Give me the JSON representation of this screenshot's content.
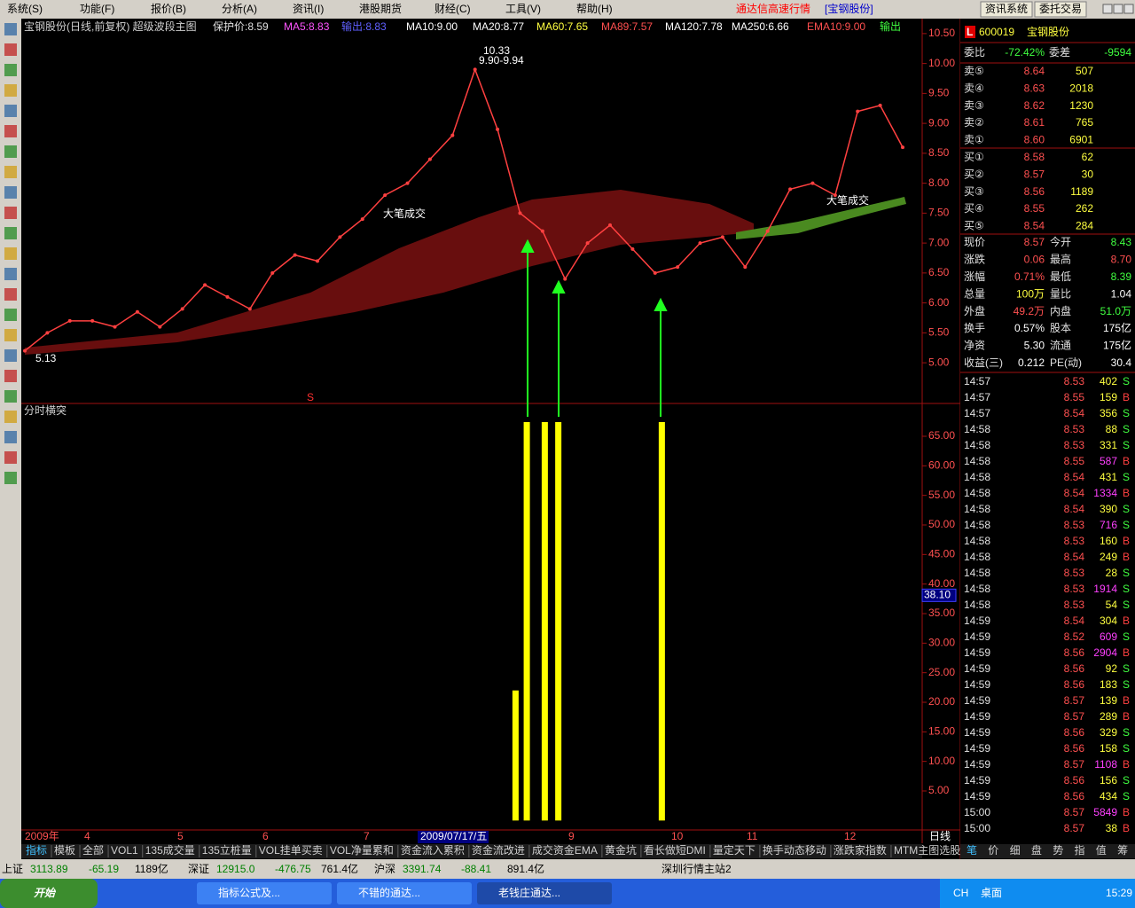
{
  "menu": {
    "items": [
      "系统(S)",
      "功能(F)",
      "报价(B)",
      "分析(A)",
      "资讯(I)",
      "港股期货",
      "财经(C)",
      "工具(V)",
      "帮助(H)"
    ],
    "app_title": "通达信高速行情",
    "stock": "[宝钢股份]",
    "buttons": [
      "资讯系统",
      "委托交易"
    ]
  },
  "price_panel": {
    "title": "宝钢股份(日线,前复权) 超级波段主图",
    "indicators": [
      {
        "text": "保护价:8.59",
        "color": "#e0e0e0"
      },
      {
        "text": "MA5:8.83",
        "color": "#ff55ff"
      },
      {
        "text": "输出:8.83",
        "color": "#6060ff"
      },
      {
        "text": "MA10:9.00",
        "color": "#ffffff"
      },
      {
        "text": "MA20:8.77",
        "color": "#ffffff"
      },
      {
        "text": "MA60:7.65",
        "color": "#ffff40"
      },
      {
        "text": "MA89:7.57",
        "color": "#ff5050"
      },
      {
        "text": "MA120:7.78",
        "color": "#ffffff"
      },
      {
        "text": "MA250:6.66",
        "color": "#ffffff"
      },
      {
        "text": "EMA10:9.00",
        "color": "#ff5050"
      },
      {
        "text": "输出",
        "color": "#40ff40"
      }
    ],
    "chart": {
      "type": "line",
      "color": "#ff4040",
      "xlim": [
        0,
        39
      ],
      "ylim": [
        4.32,
        10.75
      ],
      "yticks": [
        {
          "value": 5,
          "label": "5.00"
        },
        {
          "value": 5.5,
          "label": "5.50"
        },
        {
          "value": 6,
          "label": "6.00"
        },
        {
          "value": 6.5,
          "label": "6.50"
        },
        {
          "value": 7,
          "label": "7.00"
        },
        {
          "value": 7.5,
          "label": "7.50"
        },
        {
          "value": 8,
          "label": "8.00"
        },
        {
          "value": 8.5,
          "label": "8.50"
        },
        {
          "value": 9,
          "label": "9.00"
        },
        {
          "value": 9.5,
          "label": "9.50"
        },
        {
          "value": 10,
          "label": "10.00"
        },
        {
          "value": 10.5,
          "label": "10.50"
        }
      ],
      "values": [
        5.2,
        5.5,
        5.7,
        5.7,
        5.6,
        5.85,
        5.6,
        5.9,
        6.3,
        6.1,
        5.9,
        6.5,
        6.8,
        6.7,
        7.1,
        7.4,
        7.8,
        8.0,
        8.4,
        8.8,
        9.9,
        8.9,
        7.5,
        7.2,
        6.4,
        7.0,
        7.3,
        6.9,
        6.5,
        6.6,
        7.0,
        7.1,
        6.6,
        7.2,
        7.9,
        8.0,
        7.8,
        9.2,
        9.3,
        8.6
      ]
    },
    "annotations": [
      "10.33",
      "9.90-9.94",
      "5.13",
      "大笔成交",
      "大笔成交",
      "S"
    ]
  },
  "indicator_panel": {
    "title": "分时横突",
    "chart": {
      "type": "bar",
      "color": "#ffff00",
      "xlim": [
        0,
        39
      ],
      "ylim": [
        -1.45,
        70.4
      ],
      "yticks": [
        {
          "value": 5,
          "label": "5.00"
        },
        {
          "value": 10,
          "label": "10.00"
        },
        {
          "value": 15,
          "label": "15.00"
        },
        {
          "value": 20,
          "label": "20.00"
        },
        {
          "value": 25,
          "label": "25.00"
        },
        {
          "value": 30,
          "label": "30.00"
        },
        {
          "value": 35,
          "label": "35.00"
        },
        {
          "value": 40,
          "label": "40.00"
        },
        {
          "value": 45,
          "label": "45.00"
        },
        {
          "value": 50,
          "label": "50.00"
        },
        {
          "value": 55,
          "label": "55.00"
        },
        {
          "value": 60,
          "label": "60.00"
        },
        {
          "value": 65,
          "label": "65.00"
        }
      ],
      "x": [
        21.8,
        22.3,
        23.1,
        23.7,
        28.3
      ],
      "values": [
        22,
        67.4,
        67.4,
        67.4,
        67.4
      ]
    },
    "cursor_value": {
      "value": 38.1,
      "label": "38.10"
    }
  },
  "date_axis": {
    "labels": [
      "2009年",
      "4",
      "5",
      "6",
      "7",
      "2009/07/17/五",
      "9",
      "10",
      "11",
      "12"
    ],
    "period": "日线"
  },
  "tabs": [
    "指标",
    "模板",
    "全部",
    "VOL1",
    "135成交量",
    "135立桩量",
    "VOL挂单买卖",
    "VOL净量累和",
    "资金流入累积",
    "资金流改进",
    "成交资金EMA",
    "黄金坑",
    "看长做短DMI",
    "量定天下",
    "换手动态移动",
    "涨跌家指数",
    "MTM主图选股"
  ],
  "quote": {
    "badge": "L",
    "code": "600019",
    "name": "宝钢股份",
    "ratio": {
      "label": "委比",
      "value": "-72.42%"
    },
    "diff": {
      "label": "委差",
      "value": "-9594"
    },
    "asks": [
      [
        "卖⑤",
        "8.64",
        "507"
      ],
      [
        "卖④",
        "8.63",
        "2018"
      ],
      [
        "卖③",
        "8.62",
        "1230"
      ],
      [
        "卖②",
        "8.61",
        "765"
      ],
      [
        "卖①",
        "8.60",
        "6901"
      ]
    ],
    "bids": [
      [
        "买①",
        "8.58",
        "62"
      ],
      [
        "买②",
        "8.57",
        "30"
      ],
      [
        "买③",
        "8.56",
        "1189"
      ],
      [
        "买④",
        "8.55",
        "262"
      ],
      [
        "买⑤",
        "8.54",
        "284"
      ]
    ],
    "stats": [
      {
        "label": "现价",
        "value": "8.57",
        "color": "#ff5050"
      },
      {
        "label": "今开",
        "value": "8.43",
        "color": "#40ff40"
      },
      {
        "label": "涨跌",
        "value": "0.06",
        "color": "#ff5050"
      },
      {
        "label": "最高",
        "value": "8.70",
        "color": "#ff5050"
      },
      {
        "label": "涨幅",
        "value": "0.71%",
        "color": "#ff5050"
      },
      {
        "label": "最低",
        "value": "8.39",
        "color": "#40ff40"
      },
      {
        "label": "总量",
        "value": "100万",
        "color": "#ffff40"
      },
      {
        "label": "量比",
        "value": "1.04",
        "color": "#ffffff"
      },
      {
        "label": "外盘",
        "value": "49.2万",
        "color": "#ff5050"
      },
      {
        "label": "内盘",
        "value": "51.0万",
        "color": "#40ff40"
      },
      {
        "label": "换手",
        "value": "0.57%",
        "color": "#ffffff"
      },
      {
        "label": "股本",
        "value": "175亿",
        "color": "#ffffff"
      },
      {
        "label": "净资",
        "value": "5.30",
        "color": "#ffffff"
      },
      {
        "label": "流通",
        "value": "175亿",
        "color": "#ffffff"
      },
      {
        "label": "收益(三)",
        "value": "0.212",
        "color": "#ffffff"
      },
      {
        "label": "PE(动)",
        "value": "30.4",
        "color": "#ffffff"
      }
    ]
  },
  "ticks": {
    "side_colors": {
      "S": "#40ff40",
      "B": "#ff4040"
    },
    "rows": [
      [
        "14:57",
        "8.53",
        "402",
        "S",
        "#ffff40"
      ],
      [
        "14:57",
        "8.55",
        "159",
        "B",
        "#ffff40"
      ],
      [
        "14:57",
        "8.54",
        "356",
        "S",
        "#ffff40"
      ],
      [
        "14:58",
        "8.53",
        "88",
        "S",
        "#ffff40"
      ],
      [
        "14:58",
        "8.53",
        "331",
        "S",
        "#ffff40"
      ],
      [
        "14:58",
        "8.55",
        "587",
        "B",
        "#ff40ff"
      ],
      [
        "14:58",
        "8.54",
        "431",
        "S",
        "#ffff40"
      ],
      [
        "14:58",
        "8.54",
        "1334",
        "B",
        "#ff40ff"
      ],
      [
        "14:58",
        "8.54",
        "390",
        "S",
        "#ffff40"
      ],
      [
        "14:58",
        "8.53",
        "716",
        "S",
        "#ff40ff"
      ],
      [
        "14:58",
        "8.53",
        "160",
        "B",
        "#ffff40"
      ],
      [
        "14:58",
        "8.54",
        "249",
        "B",
        "#ffff40"
      ],
      [
        "14:58",
        "8.53",
        "28",
        "S",
        "#ffff40"
      ],
      [
        "14:58",
        "8.53",
        "1914",
        "S",
        "#ff40ff"
      ],
      [
        "14:58",
        "8.53",
        "54",
        "S",
        "#ffff40"
      ],
      [
        "14:59",
        "8.54",
        "304",
        "B",
        "#ffff40"
      ],
      [
        "14:59",
        "8.52",
        "609",
        "S",
        "#ff40ff"
      ],
      [
        "14:59",
        "8.56",
        "2904",
        "B",
        "#ff40ff"
      ],
      [
        "14:59",
        "8.56",
        "92",
        "S",
        "#ffff40"
      ],
      [
        "14:59",
        "8.56",
        "183",
        "S",
        "#ffff40"
      ],
      [
        "14:59",
        "8.57",
        "139",
        "B",
        "#ffff40"
      ],
      [
        "14:59",
        "8.57",
        "289",
        "B",
        "#ffff40"
      ],
      [
        "14:59",
        "8.56",
        "329",
        "S",
        "#ffff40"
      ],
      [
        "14:59",
        "8.56",
        "158",
        "S",
        "#ffff40"
      ],
      [
        "14:59",
        "8.57",
        "1108",
        "B",
        "#ff40ff"
      ],
      [
        "14:59",
        "8.56",
        "156",
        "S",
        "#ffff40"
      ],
      [
        "14:59",
        "8.56",
        "434",
        "S",
        "#ffff40"
      ],
      [
        "15:00",
        "8.57",
        "5849",
        "B",
        "#ff40ff"
      ],
      [
        "15:00",
        "8.57",
        "38",
        "B",
        "#ffff40"
      ]
    ]
  },
  "panel_tabs": [
    "笔",
    "价",
    "细",
    "盘",
    "势",
    "指",
    "值",
    "筹"
  ],
  "status_bar": {
    "indices": [
      [
        "上证",
        "3113.89",
        "-65.19",
        "1189亿"
      ],
      [
        "深证",
        "12915.0",
        "-476.75",
        "761.4亿"
      ],
      [
        "沪深",
        "3391.74",
        "-88.41",
        "891.4亿"
      ]
    ],
    "server": "深圳行情主站2"
  },
  "taskbar": {
    "start": "开始",
    "tasks": [
      "指标公式及...",
      "不错的通达...",
      "老钱庄通达..."
    ],
    "tray": [
      "CH",
      "桌面"
    ],
    "time": "15:29"
  }
}
